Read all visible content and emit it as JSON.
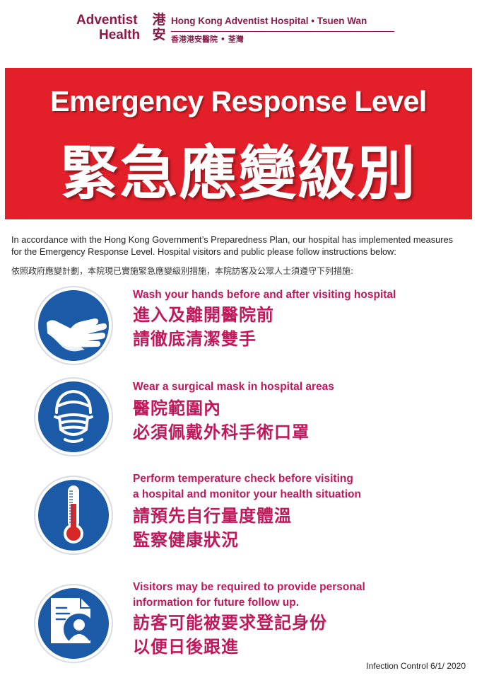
{
  "header": {
    "logo_en_line1": "Adventist",
    "logo_en_line2": "Health",
    "logo_zh_line1": "港",
    "logo_zh_line2": "安",
    "hospital_en": "Hong Kong Adventist Hospital • Tsuen Wan",
    "hospital_zh": "香港港安醫院 • 荃灣",
    "brand_color": "#8b1a4a"
  },
  "banner": {
    "title_en": "Emergency Response Level",
    "title_zh": "緊急應變級別",
    "background": "#e3202a"
  },
  "intro": {
    "en": "In accordance with the Hong Kong Government’s Preparedness Plan, our hospital has implemented measures for the Emergency Response Level. Hospital visitors and public please follow instructions below:",
    "zh": "依照政府應變計劃，本院現已實施緊急應變級別措施，本院訪客及公眾人士須遵守下列措施:"
  },
  "measures": [
    {
      "icon": "hand-washing-icon",
      "en_lines": [
        "Wash your hands before and after visiting hospital"
      ],
      "zh_lines": [
        "進入及離開醫院前",
        "請徹底清潔雙手"
      ]
    },
    {
      "icon": "surgical-mask-icon",
      "en_lines": [
        "Wear a surgical mask in hospital areas"
      ],
      "zh_lines": [
        "醫院範圍內",
        "必須佩戴外科手術口罩"
      ]
    },
    {
      "icon": "thermometer-icon",
      "en_lines": [
        "Perform temperature check before visiting",
        "a hospital and monitor your health situation"
      ],
      "zh_lines": [
        "請預先自行量度體溫",
        "監察健康狀況"
      ]
    },
    {
      "icon": "personal-information-icon",
      "en_lines": [
        "Visitors may be required to provide personal",
        "information for future follow up."
      ],
      "zh_lines": [
        "訪客可能被要求登記身份",
        "以便日後跟進"
      ]
    }
  ],
  "colors": {
    "icon_blue": "#1a5aa6",
    "measure_text": "#c2185b",
    "thermometer_red": "#d62828"
  },
  "footer": {
    "text": "Infection Control  6/1/ 2020"
  }
}
